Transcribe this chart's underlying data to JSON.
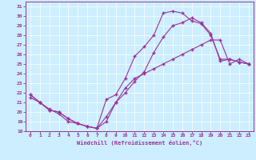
{
  "xlabel": "Windchill (Refroidissement éolien,°C)",
  "ylabel": "",
  "bg_color": "#cceeff",
  "line_color": "#993399",
  "xlim": [
    -0.5,
    23.5
  ],
  "ylim": [
    18,
    31.5
  ],
  "xticks": [
    0,
    1,
    2,
    3,
    4,
    5,
    6,
    7,
    8,
    9,
    10,
    11,
    12,
    13,
    14,
    15,
    16,
    17,
    18,
    19,
    20,
    21,
    22,
    23
  ],
  "yticks": [
    18,
    19,
    20,
    21,
    22,
    23,
    24,
    25,
    26,
    27,
    28,
    29,
    30,
    31
  ],
  "line1_x": [
    0,
    1,
    2,
    3,
    4,
    5,
    6,
    7,
    8,
    9,
    10,
    11,
    12,
    13,
    14,
    15,
    16,
    17,
    18,
    19,
    20,
    21,
    22,
    23
  ],
  "line1_y": [
    21.5,
    21.0,
    20.3,
    19.8,
    19.0,
    18.8,
    18.5,
    18.3,
    19.5,
    21.0,
    22.5,
    23.5,
    24.0,
    24.5,
    25.0,
    25.5,
    26.0,
    26.5,
    27.0,
    27.5,
    27.5,
    25.0,
    25.5,
    25.0
  ],
  "line2_x": [
    0,
    1,
    2,
    3,
    4,
    5,
    6,
    7,
    8,
    9,
    10,
    11,
    12,
    13,
    14,
    15,
    16,
    17,
    18,
    19,
    20,
    21,
    22,
    23
  ],
  "line2_y": [
    21.8,
    21.0,
    20.2,
    20.0,
    19.3,
    18.8,
    18.5,
    18.3,
    21.3,
    21.8,
    23.5,
    25.8,
    26.8,
    28.0,
    30.3,
    30.5,
    30.3,
    29.5,
    29.2,
    28.0,
    25.5,
    25.5,
    25.2,
    25.0
  ],
  "line3_x": [
    0,
    1,
    2,
    3,
    4,
    5,
    6,
    7,
    8,
    9,
    10,
    11,
    12,
    13,
    14,
    15,
    16,
    17,
    18,
    19,
    20,
    21,
    22,
    23
  ],
  "line3_y": [
    21.8,
    21.0,
    20.2,
    20.0,
    19.3,
    18.8,
    18.5,
    18.3,
    19.0,
    21.0,
    22.0,
    23.2,
    24.2,
    26.2,
    27.8,
    29.0,
    29.3,
    29.8,
    29.3,
    28.2,
    25.3,
    25.5,
    25.2,
    25.0
  ]
}
